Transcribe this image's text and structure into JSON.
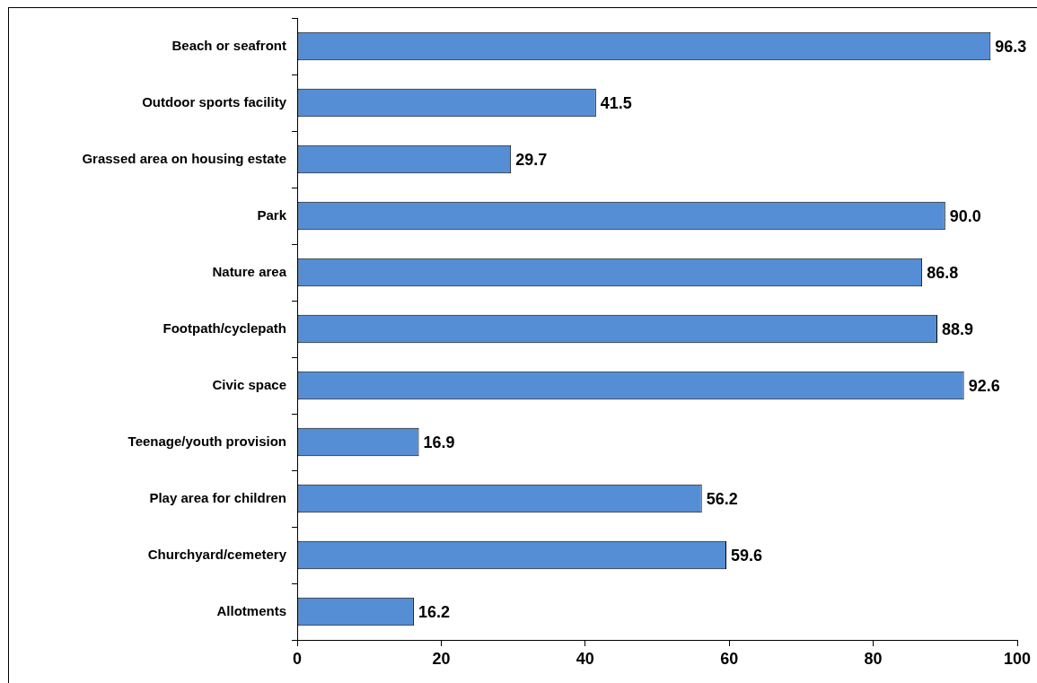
{
  "chart_data": {
    "type": "bar",
    "orientation": "horizontal",
    "categories": [
      "Beach or seafront",
      "Outdoor sports facility",
      "Grassed area on housing estate",
      "Park",
      "Nature area",
      "Footpath/cyclepath",
      "Civic space",
      "Teenage/youth provision",
      "Play area for children",
      "Churchyard/cemetery",
      "Allotments"
    ],
    "values": [
      96.3,
      41.5,
      29.7,
      90.0,
      86.8,
      88.9,
      92.6,
      16.9,
      56.2,
      59.6,
      16.2
    ],
    "value_labels": [
      "96.3",
      "41.5",
      "29.7",
      "90.0",
      "86.8",
      "88.9",
      "92.6",
      "16.9",
      "56.2",
      "59.6",
      "16.2"
    ],
    "color": "#558ed5",
    "xlim": [
      0,
      100
    ],
    "xticks": [
      0,
      20,
      40,
      60,
      80,
      100
    ],
    "grid": false,
    "legend": false
  }
}
